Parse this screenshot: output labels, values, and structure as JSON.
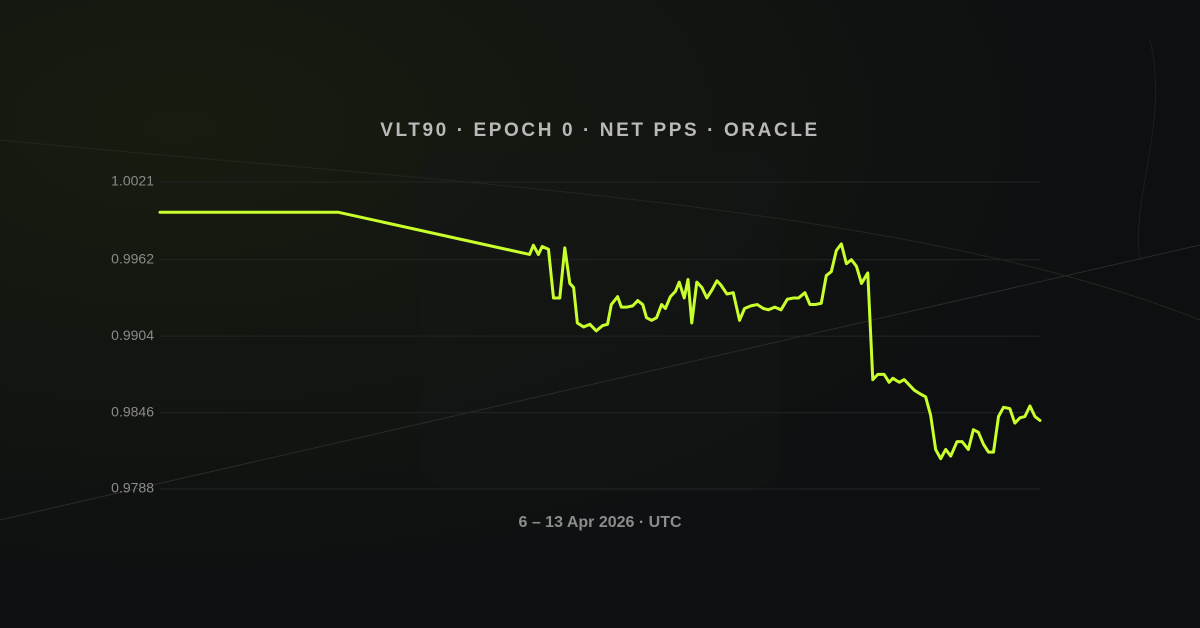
{
  "chart_data": {
    "type": "line",
    "title": "VLT90 · EPOCH 0 · NET PPS · ORACLE",
    "x_label": "6 – 13 Apr 2026 · UTC",
    "xlim": [
      6,
      13
    ],
    "ylim": [
      0.9788,
      1.0021
    ],
    "yticks": [
      1.0021,
      0.9962,
      0.9904,
      0.9846,
      0.9788
    ],
    "grid": true,
    "series": [
      {
        "name": "Net PPS",
        "color": "#c8ff2c",
        "x": [
          6.0,
          7.42,
          8.94,
          8.97,
          9.01,
          9.04,
          9.09,
          9.13,
          9.18,
          9.22,
          9.26,
          9.29,
          9.32,
          9.37,
          9.42,
          9.47,
          9.52,
          9.56,
          9.59,
          9.64,
          9.67,
          9.71,
          9.76,
          9.8,
          9.84,
          9.87,
          9.91,
          9.95,
          9.99,
          10.02,
          10.06,
          10.1,
          10.13,
          10.17,
          10.2,
          10.23,
          10.27,
          10.31,
          10.35,
          10.39,
          10.43,
          10.46,
          10.51,
          10.56,
          10.61,
          10.65,
          10.7,
          10.75,
          10.8,
          10.84,
          10.89,
          10.94,
          10.99,
          11.04,
          11.08,
          11.13,
          11.17,
          11.21,
          11.26,
          11.3,
          11.34,
          11.38,
          11.42,
          11.46,
          11.5,
          11.54,
          11.58,
          11.63,
          11.67,
          11.71,
          11.76,
          11.8,
          11.83,
          11.88,
          11.92,
          11.96,
          12.0,
          12.05,
          12.09,
          12.13,
          12.17,
          12.21,
          12.25,
          12.29,
          12.34,
          12.38,
          12.43,
          12.47,
          12.51,
          12.55,
          12.59,
          12.63,
          12.67,
          12.71,
          12.76,
          12.8,
          12.84,
          12.88,
          12.92,
          12.96,
          13.0
        ],
        "values": [
          0.9998,
          0.9998,
          0.9966,
          0.9973,
          0.9966,
          0.9972,
          0.997,
          0.9933,
          0.9933,
          0.9971,
          0.9944,
          0.9941,
          0.9914,
          0.9911,
          0.9913,
          0.9908,
          0.9912,
          0.9913,
          0.9928,
          0.9934,
          0.9926,
          0.9926,
          0.9927,
          0.9931,
          0.9928,
          0.9918,
          0.9916,
          0.9918,
          0.9928,
          0.9925,
          0.9934,
          0.9938,
          0.9945,
          0.9933,
          0.9947,
          0.9914,
          0.9945,
          0.9941,
          0.9933,
          0.9939,
          0.9946,
          0.9943,
          0.9936,
          0.9937,
          0.9916,
          0.9925,
          0.9927,
          0.9928,
          0.9925,
          0.9924,
          0.9926,
          0.9924,
          0.9932,
          0.9933,
          0.9933,
          0.9937,
          0.9928,
          0.9928,
          0.9929,
          0.995,
          0.9953,
          0.9969,
          0.9974,
          0.9959,
          0.9962,
          0.9957,
          0.9944,
          0.9952,
          0.9871,
          0.9875,
          0.9875,
          0.9869,
          0.9872,
          0.9869,
          0.9871,
          0.9867,
          0.9863,
          0.986,
          0.9858,
          0.9844,
          0.9818,
          0.9811,
          0.9818,
          0.9813,
          0.9824,
          0.9824,
          0.9818,
          0.9833,
          0.9831,
          0.9822,
          0.9816,
          0.9816,
          0.9843,
          0.985,
          0.9849,
          0.9838,
          0.9842,
          0.9843,
          0.9851,
          0.9843,
          0.984
        ]
      }
    ]
  }
}
